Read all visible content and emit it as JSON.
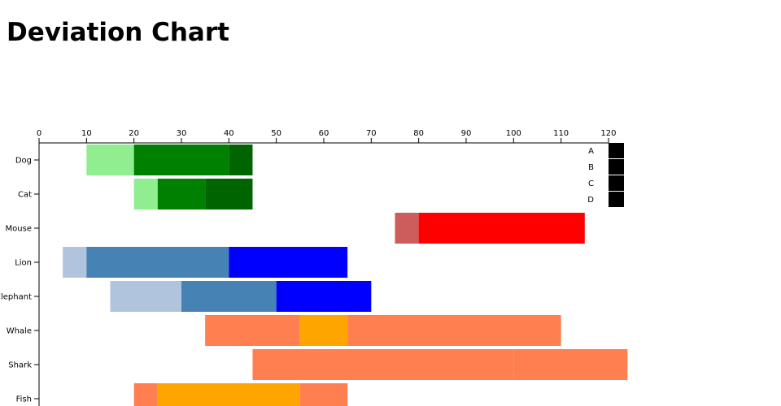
{
  "page": {
    "title": "Deviation Chart"
  },
  "chart_data": {
    "type": "bar",
    "orientation": "horizontal",
    "stacked": true,
    "title": "Deviation Chart",
    "xlim": [
      0,
      120
    ],
    "x_ticks": [
      0,
      10,
      20,
      30,
      40,
      50,
      60,
      70,
      80,
      90,
      100,
      110,
      120
    ],
    "x_axis_position": "top",
    "grid": false,
    "legend_position": "top-right",
    "legend": [
      {
        "label": "A",
        "color": "#000000"
      },
      {
        "label": "B",
        "color": "#000000"
      },
      {
        "label": "C",
        "color": "#000000"
      },
      {
        "label": "D",
        "color": "#000000"
      }
    ],
    "categories": [
      "Dog",
      "Cat",
      "Mouse",
      "Lion",
      "Elephant",
      "Whale",
      "Shark",
      "Fish"
    ],
    "rows": [
      {
        "label": "Dog",
        "segments": [
          {
            "start": 10,
            "end": 20,
            "color": "#90ee90"
          },
          {
            "start": 20,
            "end": 40,
            "color": "#008000"
          },
          {
            "start": 40,
            "end": 45,
            "color": "#006400"
          }
        ]
      },
      {
        "label": "Cat",
        "segments": [
          {
            "start": 20,
            "end": 25,
            "color": "#90ee90"
          },
          {
            "start": 25,
            "end": 35,
            "color": "#008000"
          },
          {
            "start": 35,
            "end": 45,
            "color": "#006400"
          }
        ]
      },
      {
        "label": "Mouse",
        "segments": [
          {
            "start": 75,
            "end": 80,
            "color": "#cd5c5c"
          },
          {
            "start": 80,
            "end": 115,
            "color": "#ff0000"
          }
        ]
      },
      {
        "label": "Lion",
        "segments": [
          {
            "start": 5,
            "end": 10,
            "color": "#b0c4de"
          },
          {
            "start": 10,
            "end": 40,
            "color": "#4682b4"
          },
          {
            "start": 40,
            "end": 65,
            "color": "#0000ff"
          }
        ]
      },
      {
        "label": "Elephant",
        "segments": [
          {
            "start": 15,
            "end": 30,
            "color": "#b0c4de"
          },
          {
            "start": 30,
            "end": 50,
            "color": "#4682b4"
          },
          {
            "start": 50,
            "end": 70,
            "color": "#0000ff"
          }
        ]
      },
      {
        "label": "Whale",
        "segments": [
          {
            "start": 35,
            "end": 55,
            "color": "#ff7f50"
          },
          {
            "start": 55,
            "end": 65,
            "color": "#ffa500"
          },
          {
            "start": 65,
            "end": 110,
            "color": "#ff7f50"
          }
        ]
      },
      {
        "label": "Shark",
        "segments": [
          {
            "start": 45,
            "end": 100,
            "color": "#ff7f50"
          },
          {
            "start": 100,
            "end": 124,
            "color": "#ff7f50"
          }
        ]
      },
      {
        "label": "Fish",
        "segments": [
          {
            "start": 20,
            "end": 25,
            "color": "#ff7f50"
          },
          {
            "start": 25,
            "end": 55,
            "color": "#ffa500"
          },
          {
            "start": 55,
            "end": 65,
            "color": "#ff7f50"
          }
        ]
      }
    ]
  }
}
